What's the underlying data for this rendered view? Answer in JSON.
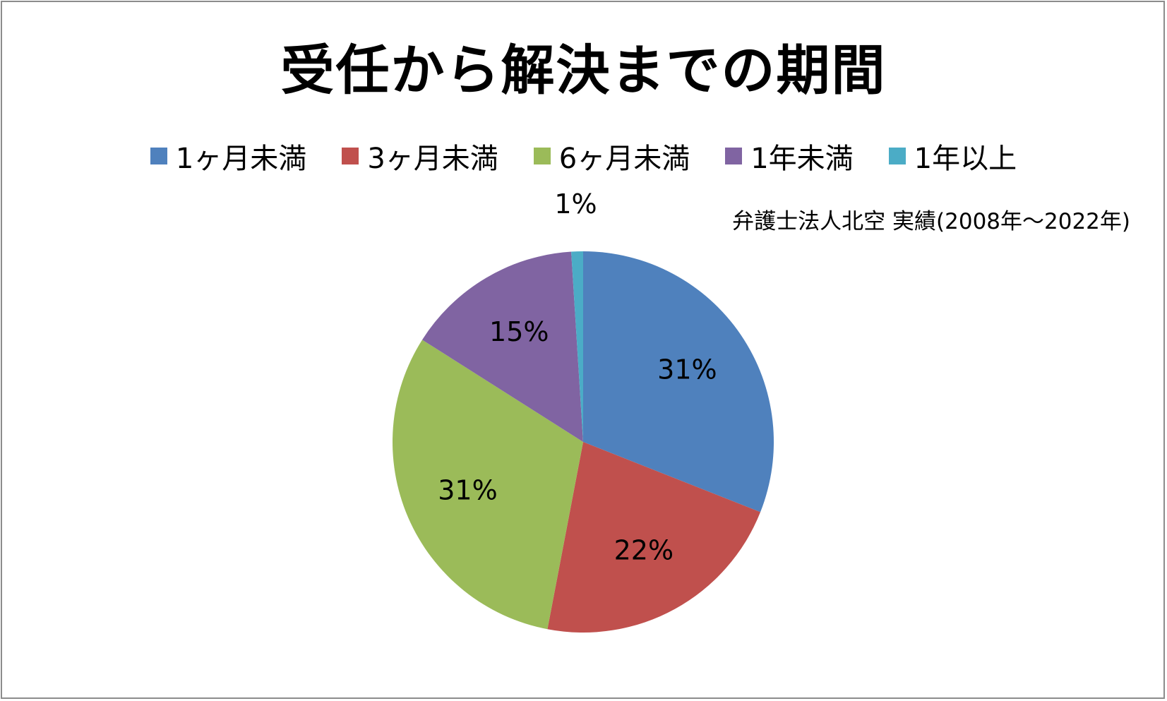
{
  "chart_data": {
    "type": "pie",
    "title": "受任から解決までの期間",
    "note": "弁護士法人北空  実績(2008年～2022年)",
    "legend_position": "top",
    "categories": [
      "1ヶ月未満",
      "3ヶ月未満",
      "6ヶ月未満",
      "1年未満",
      "1年以上"
    ],
    "values": [
      31,
      22,
      31,
      15,
      1
    ],
    "labels": [
      "31%",
      "22%",
      "31%",
      "15%",
      "1%"
    ],
    "colors": [
      "#4F81BD",
      "#C0504D",
      "#9BBB59",
      "#8064A2",
      "#4BACC6"
    ]
  }
}
